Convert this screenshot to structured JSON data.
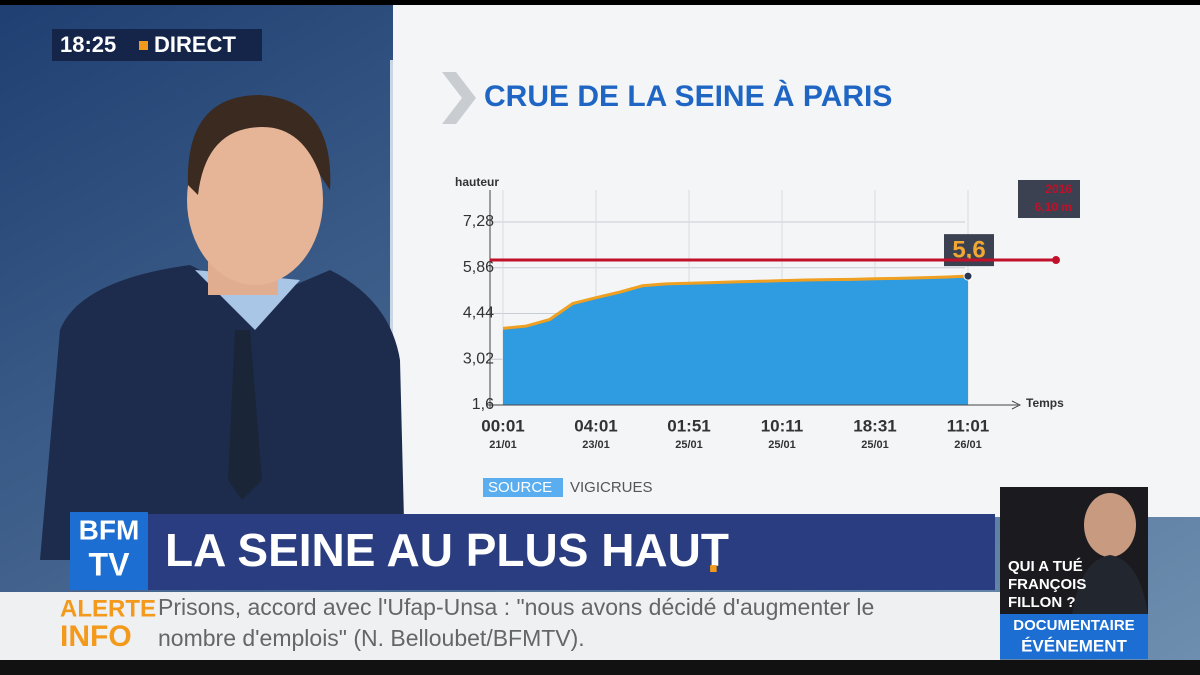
{
  "clock": {
    "time": "18:25",
    "status": "DIRECT"
  },
  "chart_data": {
    "type": "area",
    "title": "CRUE DE LA SEINE À PARIS",
    "y_label": "hauteur",
    "x_label": "Temps",
    "categories": [
      "00:01",
      null,
      null,
      null,
      "04:01",
      null,
      null,
      null,
      "01:51",
      null,
      null,
      null,
      "10:11",
      null,
      null,
      null,
      "18:31",
      null,
      null,
      null,
      "11:01"
    ],
    "category_dates": [
      "21/01",
      null,
      null,
      null,
      "23/01",
      null,
      null,
      null,
      "25/01",
      null,
      null,
      null,
      "25/01",
      null,
      null,
      null,
      "25/01",
      null,
      null,
      null,
      "26/01"
    ],
    "values": [
      3.98,
      4.05,
      4.25,
      4.75,
      4.93,
      5.1,
      5.3,
      5.36,
      5.38,
      5.4,
      5.42,
      5.44,
      5.46,
      5.48,
      5.49,
      5.5,
      5.52,
      5.53,
      5.55,
      5.57,
      5.6
    ],
    "value_labels": [
      null,
      null,
      null,
      null,
      null,
      null,
      null,
      null,
      null,
      null,
      null,
      null,
      null,
      null,
      null,
      null,
      null,
      null,
      null,
      null,
      "5,6"
    ],
    "color": "#2f9be0",
    "line_color": "#f0a020",
    "ylim": [
      1.6,
      7.28
    ],
    "yticks": [
      {
        "value": 1.6,
        "label": "1,6"
      },
      {
        "value": 3.02,
        "label": "3,02"
      },
      {
        "value": 4.44,
        "label": "4,44"
      },
      {
        "value": 5.86,
        "label": "5,86"
      },
      {
        "value": 7.28,
        "label": "7,28"
      }
    ],
    "grid": true,
    "reference_line": {
      "value": 6.1,
      "year": "2016",
      "label": "6,10 m",
      "color": "#c0102a"
    },
    "source_label": "SOURCE",
    "source": "VIGICRUES"
  },
  "logo": {
    "top": "BFM",
    "bottom": "TV"
  },
  "headline": {
    "text": "LA SEINE AU PLUS HAUT",
    "dot": "."
  },
  "ticker": {
    "label_top": "ALERTE",
    "label_bottom": "INFO",
    "line1": "Prisons, accord avec l'Ufap-Unsa : \"nous avons décidé d'augmenter le",
    "line2": "nombre d'emplois\" (N. Belloubet/BFMTV)."
  },
  "promo": {
    "title_lines": [
      "QUI A TUÉ",
      "FRANÇOIS",
      "FILLON ?"
    ],
    "tag_top": "DOCUMENTAIRE",
    "tag_bottom": "ÉVÉNEMENT"
  }
}
